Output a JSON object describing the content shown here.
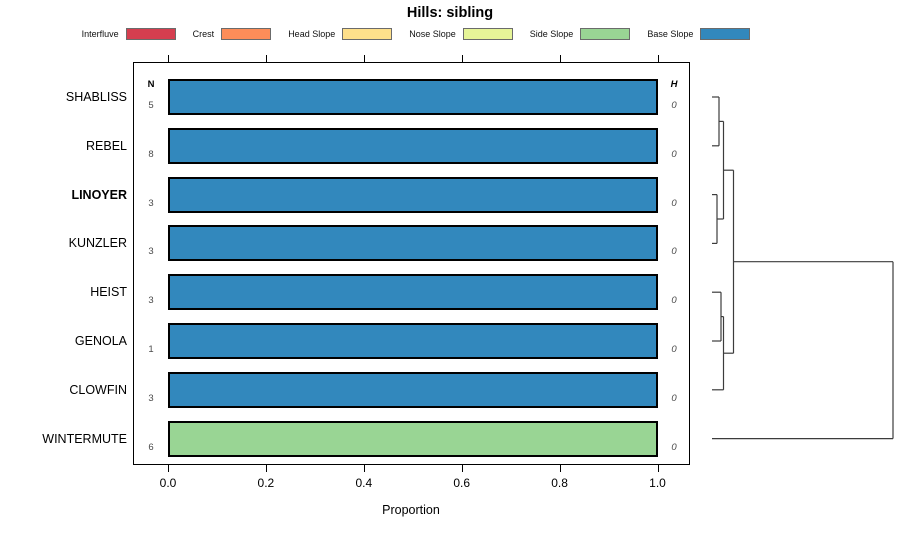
{
  "chart_data": {
    "type": "bar",
    "orientation": "horizontal",
    "title": "Hills: sibling",
    "xlabel": "Proportion",
    "xlim": [
      0,
      1
    ],
    "x_ticks": [
      0.0,
      0.2,
      0.4,
      0.6,
      0.8,
      1.0
    ],
    "x_tick_labels": [
      "0.0",
      "0.2",
      "0.4",
      "0.6",
      "0.8",
      "1.0"
    ],
    "grid": false,
    "legend_position": "top",
    "n_label": "N",
    "h_label": "H",
    "categories": [
      "SHABLISS",
      "REBEL",
      "LINOYER",
      "KUNZLER",
      "HEIST",
      "GENOLA",
      "CLOWFIN",
      "WINTERMUTE"
    ],
    "highlighted_category": "LINOYER",
    "n_values": [
      5,
      8,
      3,
      3,
      3,
      1,
      3,
      6
    ],
    "h_values": [
      "0",
      "0",
      "0",
      "0",
      "0",
      "0",
      "0",
      "0"
    ],
    "series": [
      {
        "name": "Interfluve",
        "color": "#D53E4F",
        "values": [
          0,
          0,
          0,
          0,
          0,
          0,
          0,
          0
        ]
      },
      {
        "name": "Crest",
        "color": "#FC8D59",
        "values": [
          0,
          0,
          0,
          0,
          0,
          0,
          0,
          0
        ]
      },
      {
        "name": "Head Slope",
        "color": "#FEE08B",
        "values": [
          0,
          0,
          0,
          0,
          0,
          0,
          0,
          0
        ]
      },
      {
        "name": "Nose Slope",
        "color": "#E6F598",
        "values": [
          0,
          0,
          0,
          0,
          0,
          0,
          0,
          0
        ]
      },
      {
        "name": "Side Slope",
        "color": "#99D594",
        "values": [
          0,
          0,
          0,
          0,
          0,
          0,
          0,
          1.0
        ]
      },
      {
        "name": "Base Slope",
        "color": "#3288BD",
        "values": [
          1.0,
          1.0,
          1.0,
          1.0,
          1.0,
          1.0,
          1.0,
          0
        ]
      }
    ]
  },
  "dendrogram": {
    "line_color": "#3c3c3c",
    "segments": [
      [
        712,
        97,
        719,
        97
      ],
      [
        712,
        145.8,
        719,
        145.8
      ],
      [
        719,
        97,
        719,
        145.8
      ],
      [
        719,
        121.4,
        723.5,
        121.4
      ],
      [
        712,
        194.6,
        717,
        194.6
      ],
      [
        712,
        243.4,
        717,
        243.4
      ],
      [
        717,
        194.6,
        717,
        243.4
      ],
      [
        717,
        219,
        723.5,
        219
      ],
      [
        723.5,
        121.4,
        723.5,
        219
      ],
      [
        723.5,
        170.2,
        733.5,
        170.2
      ],
      [
        712,
        292.2,
        721,
        292.2
      ],
      [
        712,
        341,
        721,
        341
      ],
      [
        721,
        292.2,
        721,
        341
      ],
      [
        721,
        316.6,
        723.5,
        316.6
      ],
      [
        712,
        389.8,
        723.5,
        389.8
      ],
      [
        723.5,
        316.6,
        723.5,
        389.8
      ],
      [
        723.5,
        353.2,
        733.5,
        353.2
      ],
      [
        733.5,
        170.2,
        733.5,
        353.2
      ],
      [
        733.5,
        261.7,
        893,
        261.7
      ],
      [
        893,
        261.7,
        893,
        438.6
      ],
      [
        712,
        438.6,
        893,
        438.6
      ]
    ]
  }
}
